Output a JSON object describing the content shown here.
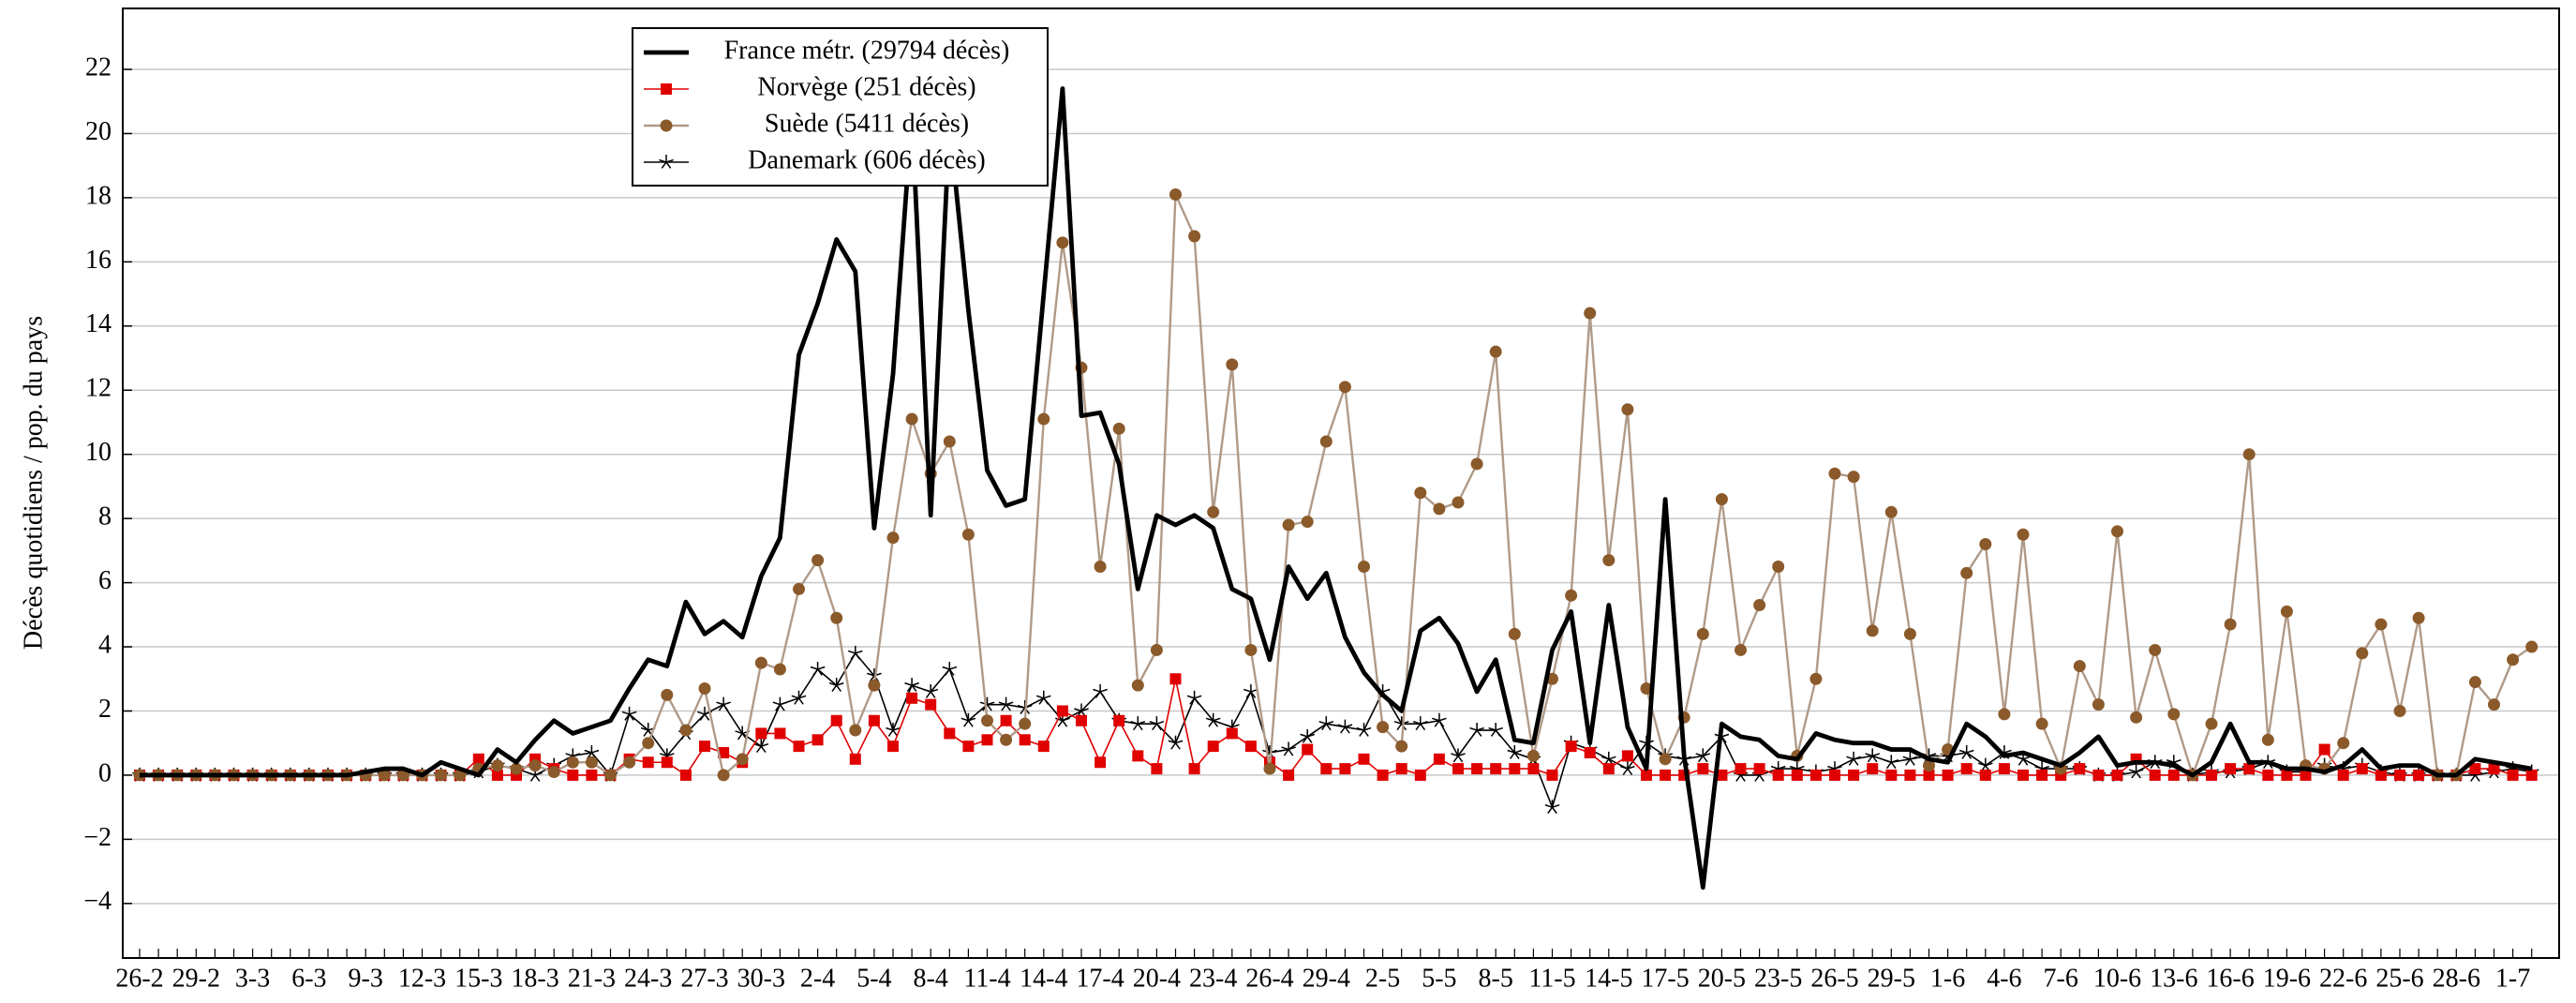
{
  "chart_data": {
    "type": "line",
    "y_label": "Décès quotidiens / pop. du pays",
    "categories": [
      "26-2",
      null,
      null,
      "29-2",
      null,
      null,
      "3-3",
      null,
      null,
      "6-3",
      null,
      null,
      "9-3",
      null,
      null,
      "12-3",
      null,
      null,
      "15-3",
      null,
      null,
      "18-3",
      null,
      null,
      "21-3",
      null,
      null,
      "24-3",
      null,
      null,
      "27-3",
      null,
      null,
      "30-3",
      null,
      null,
      "2-4",
      null,
      null,
      "5-4",
      null,
      null,
      "8-4",
      null,
      null,
      "11-4",
      null,
      null,
      "14-4",
      null,
      null,
      "17-4",
      null,
      null,
      "20-4",
      null,
      null,
      "23-4",
      null,
      null,
      "26-4",
      null,
      null,
      "29-4",
      null,
      null,
      "2-5",
      null,
      null,
      "5-5",
      null,
      null,
      "8-5",
      null,
      null,
      "11-5",
      null,
      null,
      "14-5",
      null,
      null,
      "17-5",
      null,
      null,
      "20-5",
      null,
      null,
      "23-5",
      null,
      null,
      "26-5",
      null,
      null,
      "29-5",
      null,
      null,
      "1-6",
      null,
      null,
      "4-6",
      null,
      null,
      "7-6",
      null,
      null,
      "10-6",
      null,
      null,
      "13-6",
      null,
      null,
      "16-6",
      null,
      null,
      "19-6",
      null,
      null,
      "22-6",
      null,
      null,
      "25-6",
      null,
      null,
      "28-6",
      null,
      null,
      "1-7",
      null
    ],
    "series": [
      {
        "name": "France métr. (29794 décès)",
        "color": "#000000",
        "marker": "none",
        "width": 3,
        "values": [
          0,
          0,
          0,
          0,
          0,
          0,
          0,
          0,
          0,
          0,
          0,
          0,
          0.1,
          0.2,
          0.2,
          0,
          0.4,
          0.2,
          0,
          0.8,
          0.4,
          1.1,
          1.7,
          1.3,
          1.5,
          1.7,
          2.7,
          3.6,
          3.4,
          5.4,
          4.4,
          4.8,
          4.3,
          6.2,
          7.4,
          13.1,
          14.7,
          16.7,
          15.7,
          7.7,
          12.5,
          20.6,
          8.1,
          20.3,
          14.5,
          9.5,
          8.4,
          8.6,
          15.0,
          21.4,
          11.2,
          11.3,
          9.7,
          5.8,
          8.1,
          7.8,
          8.1,
          7.7,
          5.8,
          5.5,
          3.6,
          6.5,
          5.5,
          6.3,
          4.3,
          3.2,
          2.5,
          2.0,
          4.5,
          4.9,
          4.1,
          2.6,
          3.6,
          1.1,
          1.0,
          3.9,
          5.1,
          1.0,
          5.3,
          1.5,
          0.2,
          8.6,
          0.6,
          -3.5,
          1.6,
          1.2,
          1.1,
          0.6,
          0.5,
          1.3,
          1.1,
          1.0,
          1.0,
          0.8,
          0.8,
          0.5,
          0.4,
          1.6,
          1.2,
          0.6,
          0.7,
          0.5,
          0.3,
          0.7,
          1.2,
          0.3,
          0.4,
          0.4,
          0.3,
          0,
          0.4,
          1.6,
          0.4,
          0.4,
          0.2,
          0.2,
          0.1,
          0.3,
          0.8,
          0.2,
          0.3,
          0.3,
          0,
          0,
          0.5,
          0.4,
          0.3,
          0.2
        ]
      },
      {
        "name": "Norvège (251 décès)",
        "color": "#e00000",
        "marker": "square",
        "marker_color": "#e00000",
        "width": 1,
        "values": [
          0,
          0,
          0,
          0,
          0,
          0,
          0,
          0,
          0,
          0,
          0,
          0,
          0,
          0,
          0,
          0,
          0,
          0,
          0.5,
          0,
          0,
          0.5,
          0.2,
          0,
          0,
          0,
          0.5,
          0.4,
          0.4,
          0,
          0.9,
          0.7,
          0.4,
          1.3,
          1.3,
          0.9,
          1.1,
          1.7,
          0.5,
          1.7,
          0.9,
          2.4,
          2.2,
          1.3,
          0.9,
          1.1,
          1.7,
          1.1,
          0.9,
          2.0,
          1.7,
          0.4,
          1.7,
          0.6,
          0.2,
          3.0,
          0.2,
          0.9,
          1.3,
          0.9,
          0.4,
          0,
          0.8,
          0.2,
          0.2,
          0.5,
          0,
          0.2,
          0,
          0.5,
          0.2,
          0.2,
          0.2,
          0.2,
          0.2,
          0,
          0.9,
          0.7,
          0.2,
          0.6,
          0,
          0,
          0,
          0.2,
          0,
          0.2,
          0.2,
          0,
          0,
          0,
          0,
          0,
          0.2,
          0,
          0,
          0,
          0,
          0.2,
          0,
          0.2,
          0,
          0,
          0,
          0.2,
          0,
          0,
          0.5,
          0,
          0,
          0,
          0,
          0.2,
          0.2,
          0,
          0,
          0,
          0.8,
          0,
          0.2,
          0,
          0,
          0,
          0,
          0,
          0.2,
          0.2,
          0,
          0
        ]
      },
      {
        "name": "Suède (5411 décès)",
        "color": "#b09a88",
        "marker": "circle",
        "marker_color": "#8b5a2b",
        "width": 1.5,
        "values": [
          0,
          0,
          0,
          0,
          0,
          0,
          0,
          0,
          0,
          0,
          0,
          0,
          0,
          0,
          0,
          0,
          0,
          0,
          0.2,
          0.3,
          0.2,
          0.3,
          0.1,
          0.4,
          0.4,
          0,
          0.4,
          1.0,
          2.5,
          1.4,
          2.7,
          0,
          0.5,
          3.5,
          3.3,
          5.8,
          6.7,
          4.9,
          1.4,
          2.8,
          7.4,
          11.1,
          9.4,
          10.4,
          7.5,
          1.7,
          1.1,
          1.6,
          11.1,
          16.6,
          12.7,
          6.5,
          10.8,
          2.8,
          3.9,
          18.1,
          16.8,
          8.2,
          12.8,
          3.9,
          0.2,
          7.8,
          7.9,
          10.4,
          12.1,
          6.5,
          1.5,
          0.9,
          8.8,
          8.3,
          8.5,
          9.7,
          13.2,
          4.4,
          0.6,
          3.0,
          5.6,
          14.4,
          6.7,
          11.4,
          2.7,
          0.5,
          1.8,
          4.4,
          8.6,
          3.9,
          5.3,
          6.5,
          0.6,
          3.0,
          9.4,
          9.3,
          4.5,
          8.2,
          4.4,
          0.3,
          0.8,
          6.3,
          7.2,
          1.9,
          7.5,
          1.6,
          0.2,
          3.4,
          2.2,
          7.6,
          1.8,
          3.9,
          1.9,
          0,
          1.6,
          4.7,
          10.0,
          1.1,
          5.1,
          0.3,
          0.2,
          1.0,
          3.8,
          4.7,
          2.0,
          4.9,
          0,
          0,
          2.9,
          2.2,
          3.6,
          4.0
        ]
      },
      {
        "name": "Danemark (606 décès)",
        "color": "#000000",
        "marker": "star",
        "marker_color": "#000000",
        "width": 1,
        "values": [
          0,
          0,
          0,
          0,
          0,
          0,
          0,
          0,
          0,
          0,
          0,
          0,
          0,
          0,
          0,
          0,
          0,
          0,
          0.1,
          0.3,
          0.2,
          0,
          0.3,
          0.6,
          0.7,
          0,
          1.9,
          1.4,
          0.6,
          1.3,
          1.9,
          2.2,
          1.3,
          0.9,
          2.2,
          2.4,
          3.3,
          2.8,
          3.8,
          3.1,
          1.4,
          2.8,
          2.6,
          3.3,
          1.7,
          2.2,
          2.2,
          2.1,
          2.4,
          1.7,
          2.0,
          2.6,
          1.7,
          1.6,
          1.6,
          1.0,
          2.4,
          1.7,
          1.5,
          2.6,
          0.7,
          0.8,
          1.2,
          1.6,
          1.5,
          1.4,
          2.6,
          1.6,
          1.6,
          1.7,
          0.6,
          1.4,
          1.4,
          0.7,
          0.5,
          -1.0,
          1.0,
          0.8,
          0.5,
          0.2,
          1.0,
          0.6,
          0.5,
          0.6,
          1.2,
          0,
          0,
          0.2,
          0.2,
          0.1,
          0.2,
          0.5,
          0.6,
          0.4,
          0.5,
          0.6,
          0.6,
          0.7,
          0.3,
          0.7,
          0.5,
          0.2,
          0.2,
          0.2,
          0,
          0,
          0.1,
          0.4,
          0.4,
          0,
          0.1,
          0.1,
          0.2,
          0.4,
          0.1,
          0.1,
          0.3,
          0.2,
          0.3,
          0.1,
          0,
          0,
          0,
          0,
          0,
          0.1,
          0.2,
          0.1
        ]
      }
    ],
    "ylim": [
      -5.7,
      23.9
    ],
    "yticks": [
      {
        "value": -4,
        "label": "−4"
      },
      {
        "value": -2,
        "label": "−2"
      },
      0,
      2,
      4,
      6,
      8,
      10,
      12,
      14,
      16,
      18,
      20,
      22
    ],
    "grid": true,
    "legend": "upper left"
  }
}
